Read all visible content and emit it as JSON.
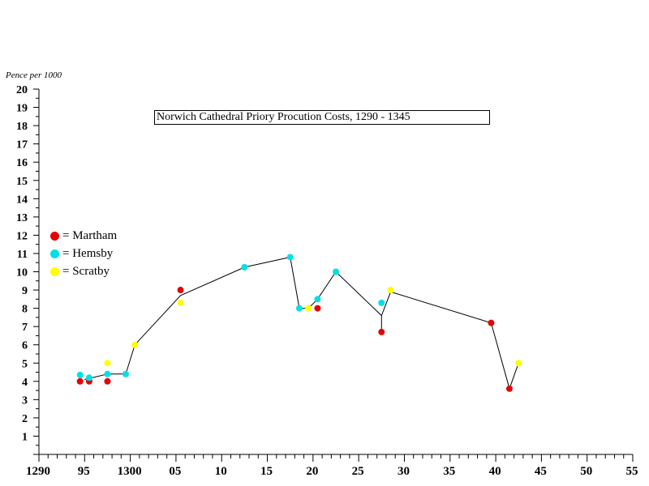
{
  "chart_data": {
    "type": "scatter",
    "title": "Norwich Cathedral Priory Procution Costs, 1290 - 1345",
    "ylabel": "Pence per 1000",
    "xlabel": "",
    "xlim": [
      1290,
      1355
    ],
    "ylim": [
      0,
      20
    ],
    "y_ticks": [
      1,
      2,
      3,
      4,
      5,
      6,
      7,
      8,
      9,
      10,
      11,
      12,
      13,
      14,
      15,
      16,
      17,
      18,
      19,
      20
    ],
    "x_tick_labels": [
      {
        "x": 1290,
        "label": "1290"
      },
      {
        "x": 1295,
        "label": "95"
      },
      {
        "x": 1300,
        "label": "1300"
      },
      {
        "x": 1305,
        "label": "05"
      },
      {
        "x": 1310,
        "label": "10"
      },
      {
        "x": 1315,
        "label": "15"
      },
      {
        "x": 1320,
        "label": "20"
      },
      {
        "x": 1325,
        "label": "25"
      },
      {
        "x": 1330,
        "label": "30"
      },
      {
        "x": 1335,
        "label": "35"
      },
      {
        "x": 1340,
        "label": "40"
      },
      {
        "x": 1345,
        "label": "45"
      },
      {
        "x": 1350,
        "label": "50"
      },
      {
        "x": 1355,
        "label": "55"
      }
    ],
    "series": [
      {
        "name": "Martham",
        "color": "#e60000",
        "points": [
          [
            1294.5,
            4.0
          ],
          [
            1295.5,
            4.0
          ],
          [
            1297.5,
            4.0
          ],
          [
            1305.5,
            9.0
          ],
          [
            1320.5,
            8.0
          ],
          [
            1327.5,
            6.7
          ],
          [
            1339.5,
            7.2
          ],
          [
            1341.5,
            3.6
          ]
        ]
      },
      {
        "name": "Hemsby",
        "color": "#00e0e8",
        "points": [
          [
            1294.5,
            4.35
          ],
          [
            1295.5,
            4.2
          ],
          [
            1297.5,
            4.4
          ],
          [
            1299.5,
            4.4
          ],
          [
            1312.5,
            10.25
          ],
          [
            1317.5,
            10.8
          ],
          [
            1318.5,
            8.0
          ],
          [
            1320.5,
            8.5
          ],
          [
            1322.5,
            10.0
          ],
          [
            1327.5,
            8.3
          ]
        ]
      },
      {
        "name": "Scratby",
        "color": "#ffff00",
        "points": [
          [
            1297.5,
            5.0
          ],
          [
            1300.5,
            6.0
          ],
          [
            1305.5,
            8.3
          ],
          [
            1319.5,
            8.0
          ],
          [
            1328.5,
            9.0
          ],
          [
            1342.5,
            5.0
          ]
        ]
      }
    ],
    "trend_line": [
      [
        1295.0,
        4.1
      ],
      [
        1297.5,
        4.4
      ],
      [
        1299.5,
        4.4
      ],
      [
        1300.5,
        6.0
      ],
      [
        1305.5,
        8.7
      ],
      [
        1312.5,
        10.25
      ],
      [
        1317.5,
        10.8
      ],
      [
        1318.5,
        8.0
      ],
      [
        1319.5,
        8.0
      ],
      [
        1320.5,
        8.5
      ],
      [
        1322.5,
        10.0
      ],
      [
        1327.5,
        7.6
      ],
      [
        1327.5,
        6.7
      ],
      [
        1327.5,
        7.6
      ],
      [
        1328.5,
        8.9
      ],
      [
        1339.5,
        7.2
      ],
      [
        1341.5,
        3.6
      ],
      [
        1342.5,
        5.0
      ]
    ],
    "legend": {
      "placement": "left",
      "prefix": "= "
    },
    "grid": false,
    "colors": {
      "axis": "#000000",
      "line": "#000000"
    }
  }
}
